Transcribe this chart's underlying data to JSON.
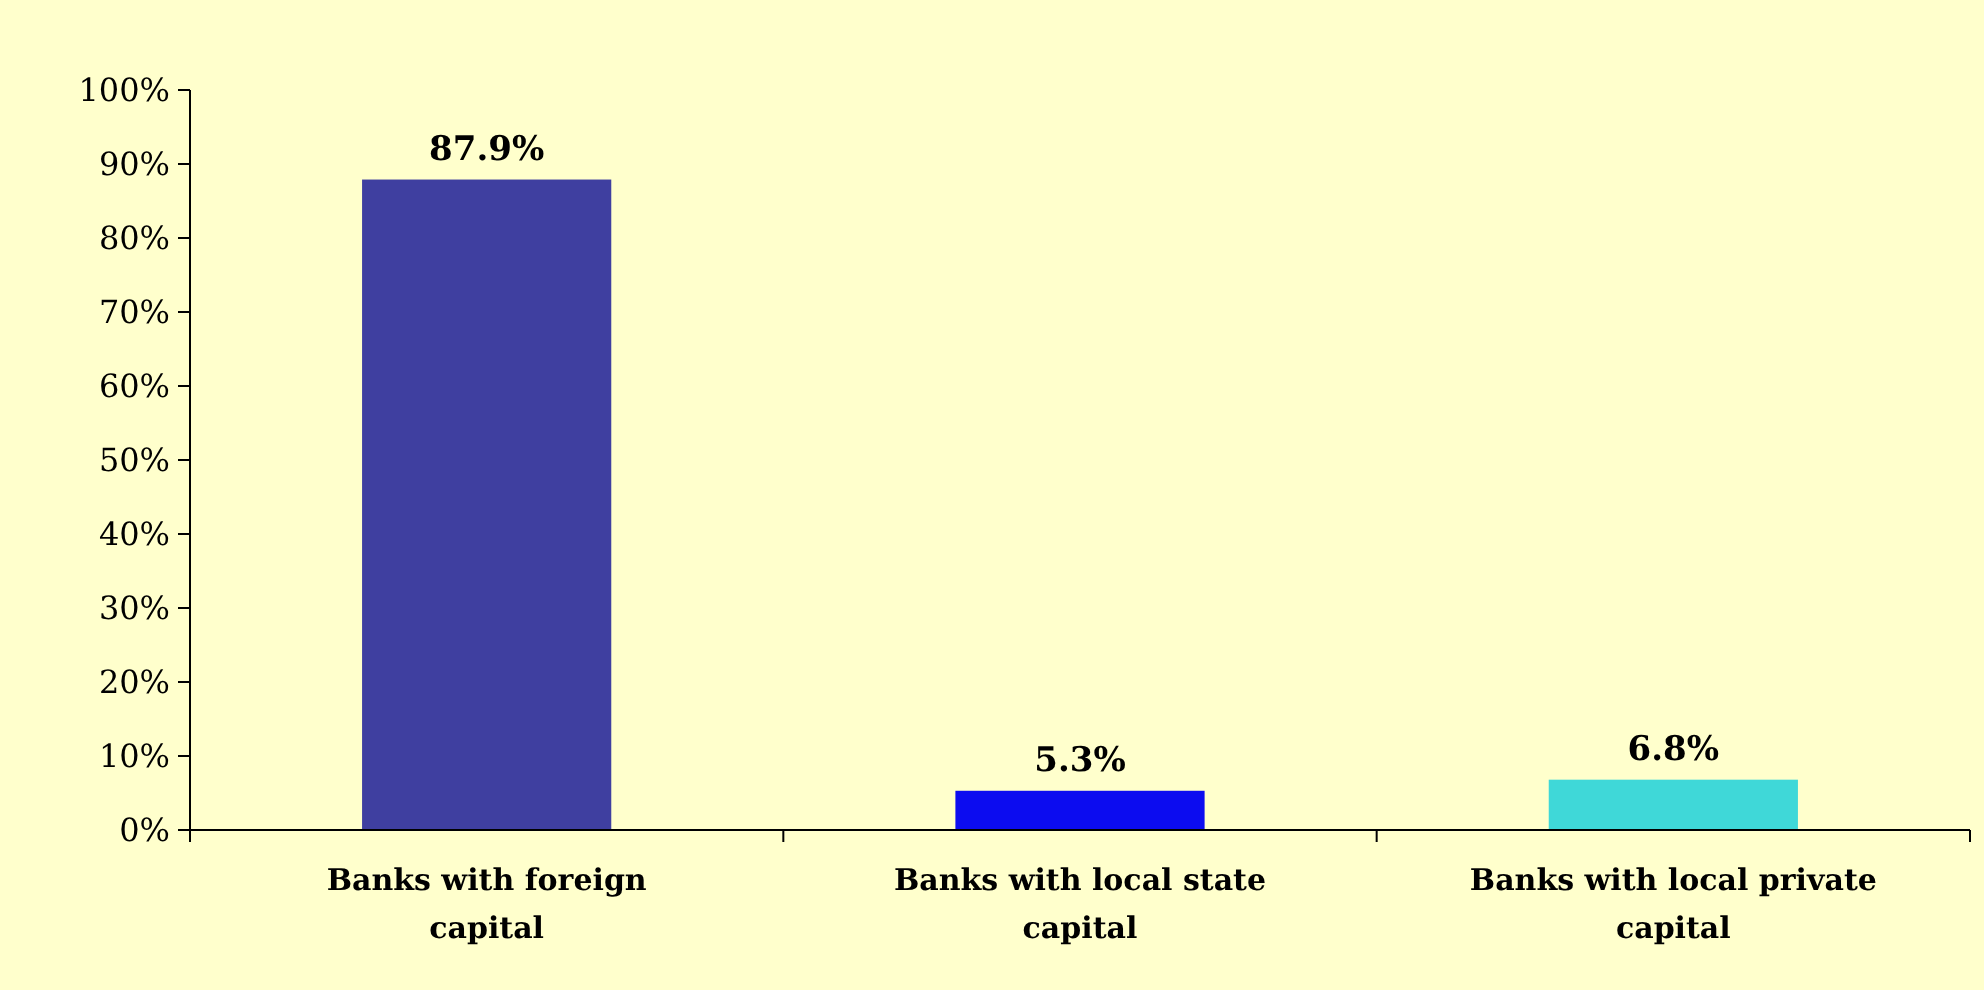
{
  "chart_data": {
    "type": "bar",
    "categories": [
      "Banks with foreign capital",
      "Banks with local state capital",
      "Banks with local private capital"
    ],
    "values": [
      87.9,
      5.3,
      6.8
    ],
    "colors": [
      "#3f3fa0",
      "#0c0cf0",
      "#3fd8d8"
    ],
    "value_labels": [
      "87.9%",
      "5.3%",
      "6.8%"
    ],
    "ylim": [
      0,
      100
    ],
    "yticks": [
      {
        "value": 0,
        "label": "0%"
      },
      {
        "value": 10,
        "label": "10%"
      },
      {
        "value": 20,
        "label": "20%"
      },
      {
        "value": 30,
        "label": "30%"
      },
      {
        "value": 40,
        "label": "40%"
      },
      {
        "value": 50,
        "label": "50%"
      },
      {
        "value": 60,
        "label": "60%"
      },
      {
        "value": 70,
        "label": "70%"
      },
      {
        "value": 80,
        "label": "80%"
      },
      {
        "value": 90,
        "label": "90%"
      },
      {
        "value": 100,
        "label": "100%"
      }
    ],
    "grid": false
  }
}
